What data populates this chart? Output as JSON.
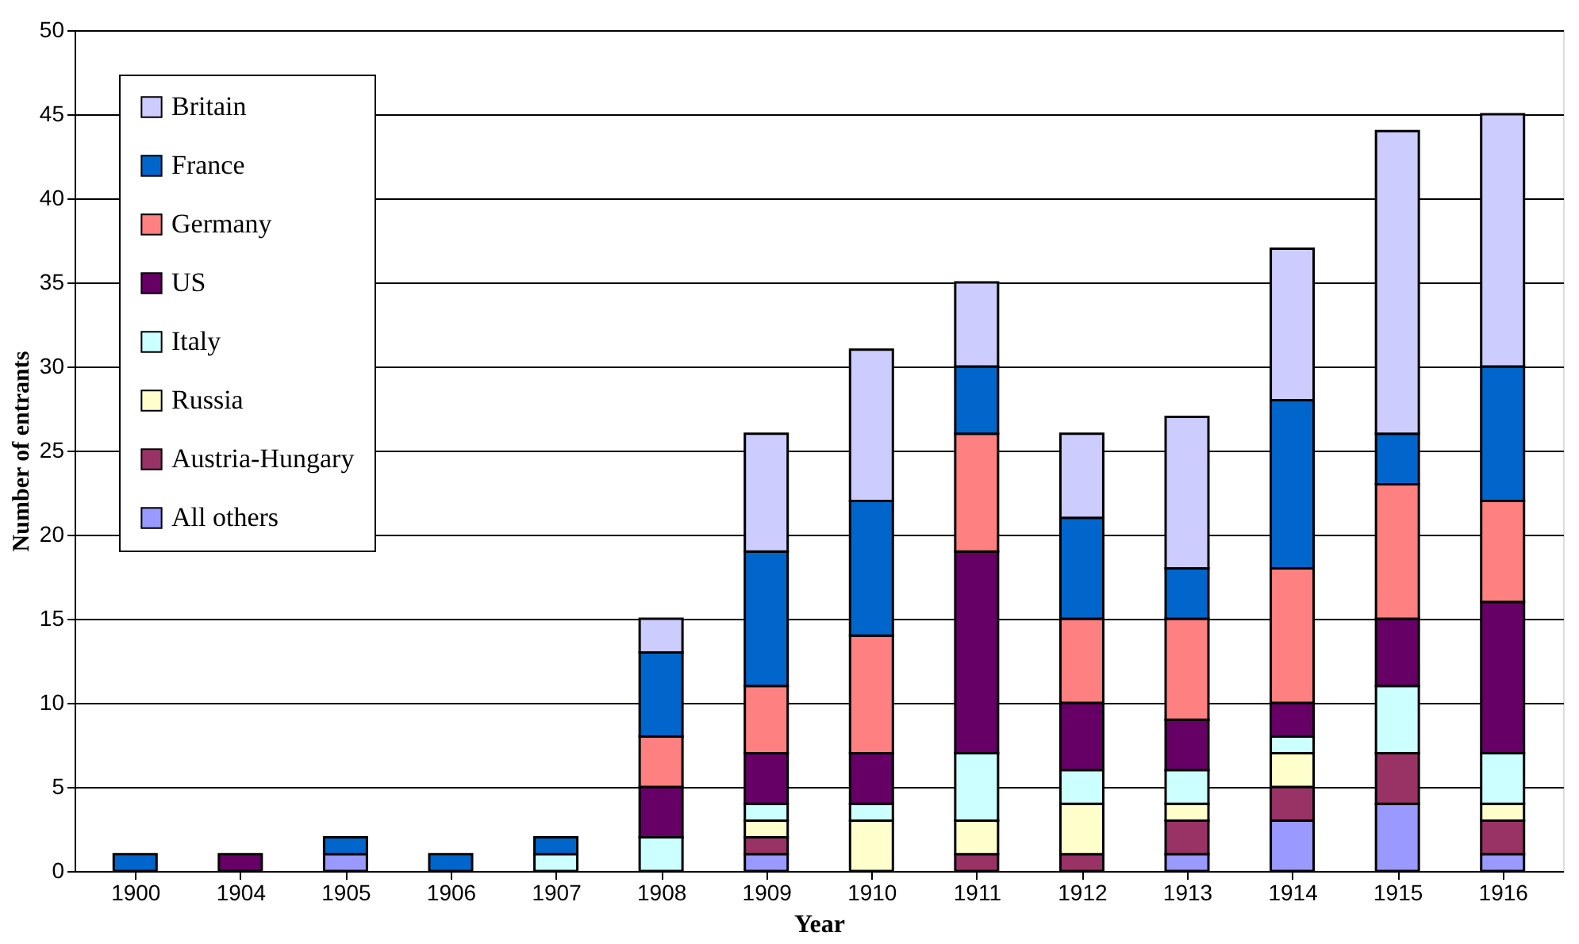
{
  "chart_data": {
    "type": "bar",
    "stacked": true,
    "xlabel": "Year",
    "ylabel": "Number of entrants",
    "categories": [
      "1900",
      "1904",
      "1905",
      "1906",
      "1907",
      "1908",
      "1909",
      "1910",
      "1911",
      "1912",
      "1913",
      "1914",
      "1915",
      "1916"
    ],
    "series": [
      {
        "name": "All others",
        "color": "#9999ff",
        "values": [
          null,
          null,
          1,
          null,
          null,
          null,
          1,
          null,
          null,
          null,
          1,
          3,
          4,
          1
        ]
      },
      {
        "name": "Austria-Hungary",
        "color": "#993366",
        "values": [
          null,
          null,
          null,
          null,
          null,
          null,
          1,
          null,
          1,
          1,
          2,
          2,
          3,
          2
        ]
      },
      {
        "name": "Russia",
        "color": "#ffffcc",
        "values": [
          null,
          null,
          null,
          null,
          null,
          null,
          1,
          3,
          2,
          3,
          1,
          2,
          null,
          1
        ]
      },
      {
        "name": "Italy",
        "color": "#ccffff",
        "values": [
          null,
          null,
          null,
          null,
          1,
          2,
          1,
          1,
          4,
          2,
          2,
          1,
          4,
          3
        ]
      },
      {
        "name": "US",
        "color": "#660066",
        "values": [
          null,
          1,
          null,
          null,
          null,
          3,
          3,
          3,
          12,
          4,
          3,
          2,
          4,
          9
        ]
      },
      {
        "name": "Germany",
        "color": "#ff8080",
        "values": [
          null,
          null,
          null,
          null,
          null,
          3,
          4,
          7,
          7,
          5,
          6,
          8,
          8,
          6
        ]
      },
      {
        "name": "France",
        "color": "#0066cc",
        "values": [
          1,
          null,
          1,
          1,
          1,
          5,
          8,
          8,
          4,
          6,
          3,
          10,
          3,
          8
        ]
      },
      {
        "name": "Britain",
        "color": "#ccccff",
        "values": [
          null,
          null,
          null,
          null,
          null,
          2,
          7,
          9,
          5,
          5,
          9,
          9,
          18,
          15
        ]
      }
    ],
    "ylim": [
      0,
      50
    ],
    "yticks": [
      0,
      5,
      10,
      15,
      20,
      25,
      30,
      35,
      40,
      45,
      50
    ],
    "grid": "y",
    "legend": "top left"
  }
}
